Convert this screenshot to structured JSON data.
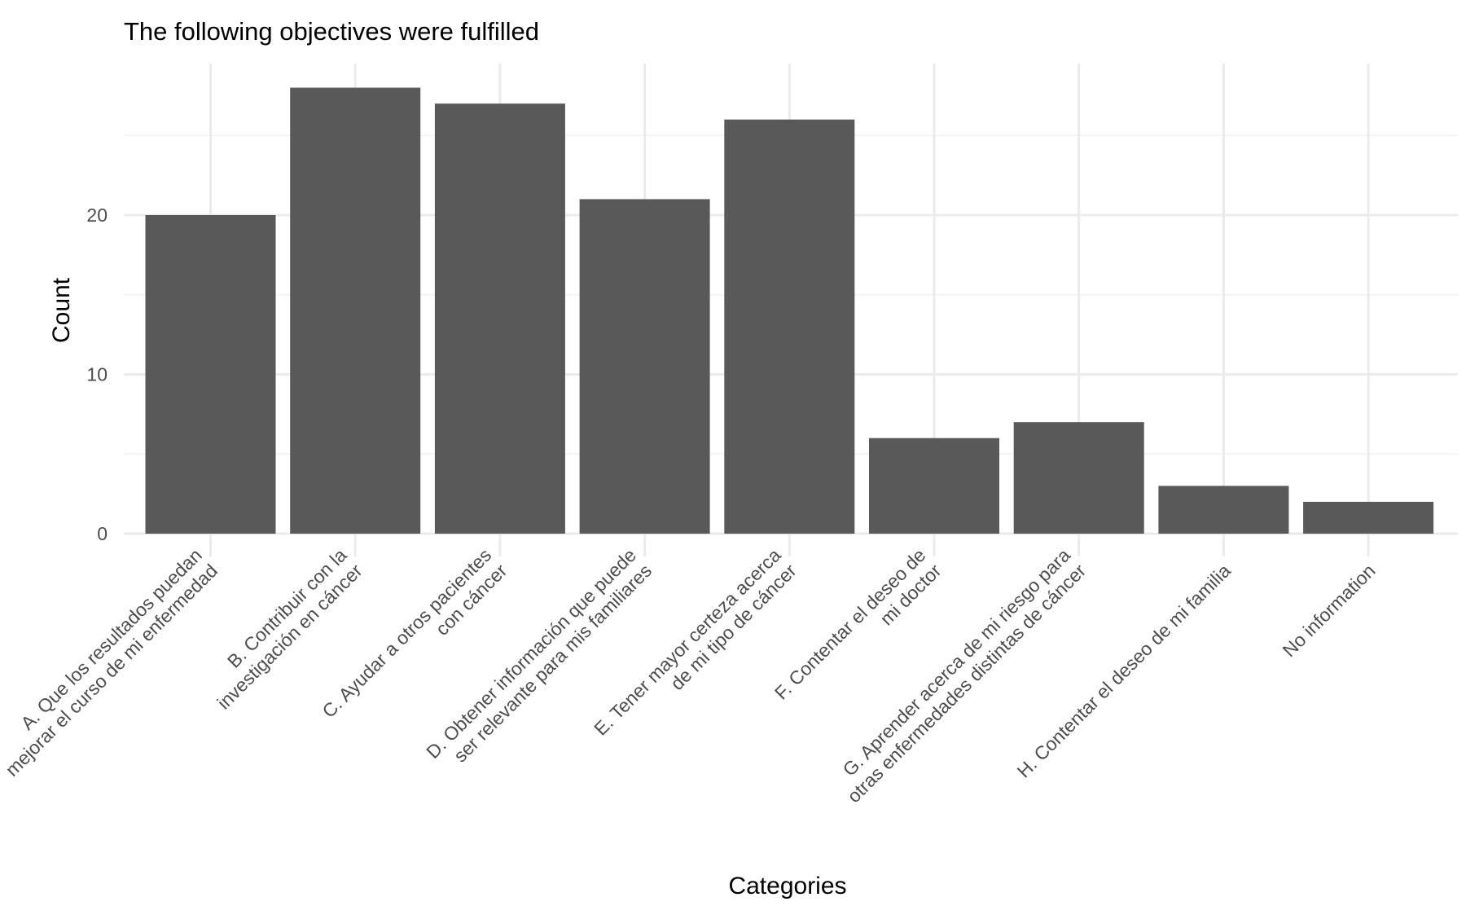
{
  "chart_data": {
    "type": "bar",
    "title": "The following objectives were fulfilled",
    "xlabel": "Categories",
    "ylabel": "Count",
    "ylim": [
      0,
      29
    ],
    "yticks": [
      0,
      10,
      20
    ],
    "grid": true,
    "categories": [
      "A. Que los resultados puedan\nmejorar el curso de mi enfermedad",
      "B. Contribuir con la\ninvestigación en cáncer",
      "C. Ayudar a otros pacientes\ncon cáncer",
      "D. Obtener información que puede\nser relevante para mis familiares",
      "E. Tener mayor certeza acerca\nde mi tipo de cáncer",
      "F. Contentar el deseo de\nmi doctor",
      "G. Aprender acerca de mi riesgo para\notras enfermedades distintas de cáncer",
      "H. Contentar el deseo de mi familia",
      "No information"
    ],
    "values": [
      20,
      28,
      27,
      21,
      26,
      6,
      7,
      3,
      2
    ],
    "colors": {
      "bar": "#595959",
      "grid_major": "#ebebeb",
      "grid_minor": "#f4f4f4"
    }
  }
}
